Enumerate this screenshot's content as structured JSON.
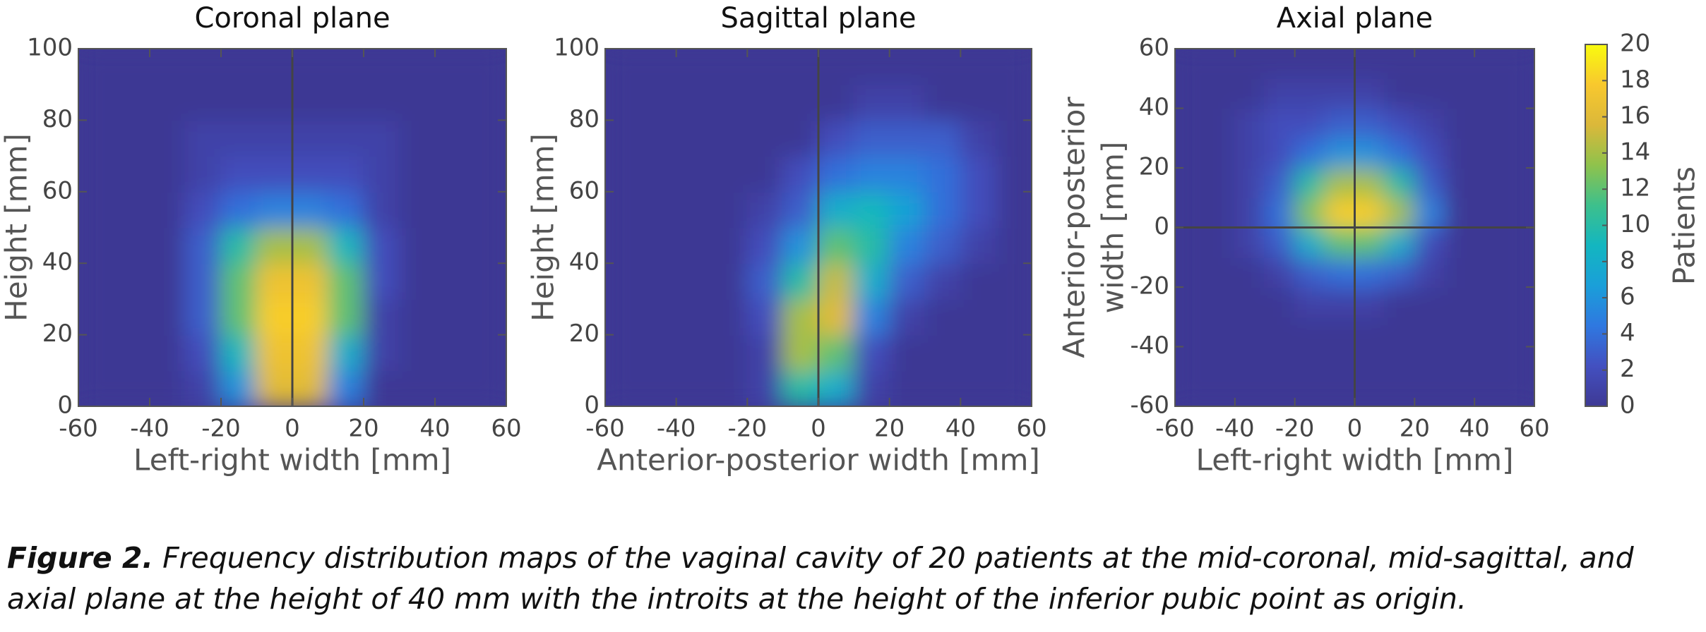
{
  "chart_data": [
    {
      "type": "heatmap",
      "title": "Coronal plane",
      "xlabel": "Left-right width [mm]",
      "ylabel": [
        "Height [mm]"
      ],
      "x": [
        -55,
        -45,
        -35,
        -25,
        -15,
        -5,
        5,
        15,
        25,
        35,
        45,
        55
      ],
      "y": [
        5,
        15,
        25,
        35,
        45,
        55,
        65,
        75,
        85,
        95
      ],
      "z": [
        [
          0,
          0,
          0,
          1,
          6,
          16,
          16,
          5,
          0,
          0,
          0,
          0
        ],
        [
          0,
          0,
          0,
          2,
          9,
          17,
          17,
          8,
          1,
          0,
          0,
          0
        ],
        [
          0,
          0,
          0,
          3,
          12,
          18,
          18,
          12,
          1,
          0,
          0,
          0
        ],
        [
          0,
          0,
          0,
          3,
          12,
          17,
          17,
          12,
          2,
          0,
          0,
          0
        ],
        [
          0,
          0,
          0,
          3,
          10,
          14,
          14,
          9,
          2,
          0,
          0,
          0
        ],
        [
          0,
          0,
          0,
          2,
          4,
          5,
          5,
          4,
          1,
          0,
          0,
          0
        ],
        [
          0,
          0,
          0,
          1,
          2,
          2,
          2,
          2,
          1,
          0,
          0,
          0
        ],
        [
          0,
          0,
          0,
          1,
          1,
          1,
          1,
          1,
          1,
          0,
          0,
          0
        ],
        [
          0,
          0,
          0,
          0,
          0,
          0,
          0,
          0,
          0,
          0,
          0,
          0
        ],
        [
          0,
          0,
          0,
          0,
          0,
          0,
          0,
          0,
          0,
          0,
          0,
          0
        ]
      ],
      "xlim": [
        -60,
        60
      ],
      "ylim": [
        0,
        100
      ],
      "xticks": [
        -60,
        -40,
        -20,
        0,
        20,
        40,
        60
      ],
      "yticks": [
        0,
        20,
        40,
        60,
        80,
        100
      ],
      "vlines": [
        0
      ],
      "hlines": []
    },
    {
      "type": "heatmap",
      "title": "Sagittal plane",
      "xlabel": "Anterior-posterior width [mm]",
      "ylabel": [
        "Height [mm]"
      ],
      "x": [
        -55,
        -45,
        -35,
        -25,
        -15,
        -5,
        5,
        15,
        25,
        35,
        45,
        55
      ],
      "y": [
        5,
        15,
        25,
        35,
        45,
        55,
        65,
        75,
        85,
        95
      ],
      "z": [
        [
          0,
          0,
          0,
          0,
          1,
          10,
          8,
          1,
          0,
          0,
          0,
          0
        ],
        [
          0,
          0,
          0,
          0,
          1,
          14,
          12,
          2,
          0,
          0,
          0,
          0
        ],
        [
          0,
          0,
          0,
          0,
          2,
          14,
          16,
          5,
          1,
          0,
          0,
          0
        ],
        [
          0,
          0,
          0,
          0,
          3,
          10,
          15,
          8,
          3,
          1,
          0,
          0
        ],
        [
          0,
          0,
          0,
          0,
          2,
          6,
          12,
          10,
          5,
          3,
          1,
          0
        ],
        [
          0,
          0,
          0,
          0,
          1,
          3,
          8,
          9,
          7,
          4,
          2,
          0
        ],
        [
          0,
          0,
          0,
          0,
          0,
          2,
          4,
          5,
          5,
          4,
          2,
          0
        ],
        [
          0,
          0,
          0,
          0,
          0,
          0,
          2,
          3,
          3,
          3,
          1,
          0
        ],
        [
          0,
          0,
          0,
          0,
          0,
          0,
          0,
          1,
          1,
          0,
          0,
          0
        ],
        [
          0,
          0,
          0,
          0,
          0,
          0,
          0,
          0,
          0,
          0,
          0,
          0
        ]
      ],
      "xlim": [
        -60,
        60
      ],
      "ylim": [
        0,
        100
      ],
      "xticks": [
        -60,
        -40,
        -20,
        0,
        20,
        40,
        60
      ],
      "yticks": [
        0,
        20,
        40,
        60,
        80,
        100
      ],
      "vlines": [
        0
      ],
      "hlines": []
    },
    {
      "type": "heatmap",
      "title": "Axial plane",
      "xlabel": "Left-right width [mm]",
      "ylabel": [
        "Anterior-posterior",
        "width [mm]"
      ],
      "x": [
        -55,
        -45,
        -35,
        -25,
        -15,
        -5,
        5,
        15,
        25,
        35,
        45,
        55
      ],
      "y": [
        -55,
        -45,
        -35,
        -25,
        -15,
        -5,
        5,
        15,
        25,
        35,
        45,
        55
      ],
      "z": [
        [
          0,
          0,
          0,
          0,
          0,
          0,
          0,
          0,
          0,
          0,
          0,
          0
        ],
        [
          0,
          0,
          0,
          0,
          0,
          0,
          0,
          0,
          0,
          0,
          0,
          0
        ],
        [
          0,
          0,
          0,
          0,
          0,
          0,
          0,
          0,
          0,
          0,
          0,
          0
        ],
        [
          0,
          0,
          0,
          0,
          1,
          1,
          1,
          0,
          0,
          0,
          0,
          0
        ],
        [
          0,
          0,
          0,
          1,
          3,
          4,
          4,
          3,
          1,
          0,
          0,
          0
        ],
        [
          0,
          0,
          1,
          3,
          8,
          12,
          12,
          8,
          2,
          0,
          0,
          0
        ],
        [
          0,
          0,
          1,
          4,
          13,
          18,
          18,
          14,
          5,
          0,
          0,
          0
        ],
        [
          0,
          0,
          1,
          3,
          10,
          14,
          14,
          10,
          3,
          0,
          0,
          0
        ],
        [
          0,
          0,
          1,
          2,
          4,
          6,
          6,
          4,
          2,
          0,
          0,
          0
        ],
        [
          0,
          0,
          1,
          2,
          2,
          3,
          3,
          2,
          1,
          0,
          0,
          0
        ],
        [
          0,
          0,
          0,
          1,
          1,
          1,
          1,
          0,
          0,
          0,
          0,
          0
        ],
        [
          0,
          0,
          0,
          0,
          0,
          0,
          0,
          0,
          0,
          0,
          0,
          0
        ]
      ],
      "xlim": [
        -60,
        60
      ],
      "ylim": [
        -60,
        60
      ],
      "xticks": [
        -60,
        -40,
        -20,
        0,
        20,
        40,
        60
      ],
      "yticks": [
        -60,
        -40,
        -20,
        0,
        20,
        40,
        60
      ],
      "vlines": [
        0
      ],
      "hlines": [
        0
      ]
    }
  ],
  "colorbar": {
    "label": "Patients",
    "lim": [
      0,
      20
    ],
    "ticks": [
      0,
      2,
      4,
      6,
      8,
      10,
      12,
      14,
      16,
      18,
      20
    ],
    "colormap": [
      "#3e3994",
      "#4350c0",
      "#2f78e0",
      "#1a9fd9",
      "#13b6c0",
      "#3dc08c",
      "#8fc24c",
      "#dbb83a",
      "#f8c82e",
      "#f9fb0e"
    ]
  },
  "caption": {
    "label": "Figure 2.",
    "text": "Frequency distribution maps of the vaginal cavity of 20 patients at the mid-coronal, mid-sagittal, and axial plane at the height of 40 mm with the introits at the height of the inferior pubic point as origin."
  }
}
